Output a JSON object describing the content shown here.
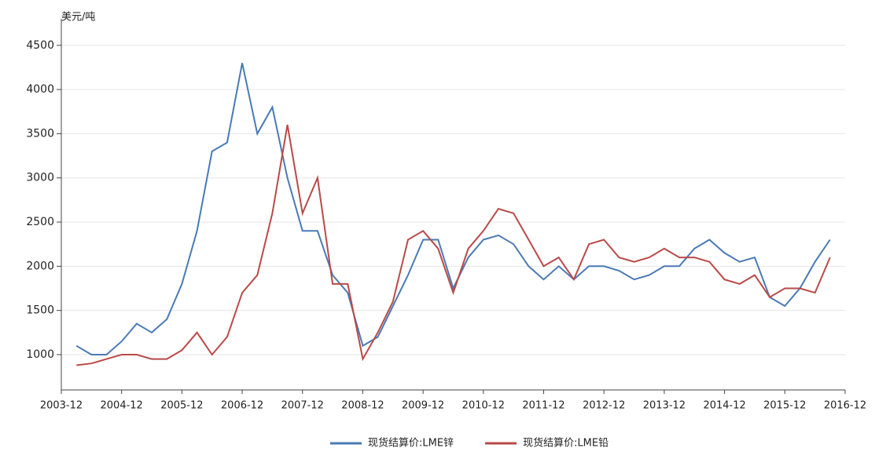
{
  "chart_data": {
    "type": "line",
    "y_label": "美元/吨",
    "x": [
      "2004-03",
      "2004-06",
      "2004-09",
      "2004-12",
      "2005-03",
      "2005-06",
      "2005-09",
      "2005-12",
      "2006-03",
      "2006-06",
      "2006-09",
      "2006-12",
      "2007-03",
      "2007-06",
      "2007-09",
      "2007-12",
      "2008-03",
      "2008-06",
      "2008-09",
      "2008-12",
      "2009-03",
      "2009-06",
      "2009-09",
      "2009-12",
      "2010-03",
      "2010-06",
      "2010-09",
      "2010-12",
      "2011-03",
      "2011-06",
      "2011-09",
      "2011-12",
      "2012-03",
      "2012-06",
      "2012-09",
      "2012-12",
      "2013-03",
      "2013-06",
      "2013-09",
      "2013-12",
      "2014-03",
      "2014-06",
      "2014-09",
      "2014-12",
      "2015-03",
      "2015-06",
      "2015-09",
      "2015-12",
      "2016-03",
      "2016-06",
      "2016-09"
    ],
    "series": [
      {
        "name": "现货结算价:LME锌",
        "color": "#4a7ab5",
        "values": [
          1100,
          1000,
          1000,
          1150,
          1350,
          1250,
          1400,
          1800,
          2400,
          3300,
          3400,
          4300,
          3500,
          3800,
          3000,
          2400,
          2400,
          1900,
          1700,
          1100,
          1200,
          1550,
          1900,
          2300,
          2300,
          1750,
          2100,
          2300,
          2350,
          2250,
          2000,
          1850,
          2000,
          1850,
          2000,
          2000,
          1950,
          1850,
          1900,
          2000,
          2000,
          2200,
          2300,
          2150,
          2050,
          2100,
          1650,
          1550,
          1750,
          2050,
          2300
        ]
      },
      {
        "name": "现货结算价:LME铅",
        "color": "#b94a48",
        "values": [
          880,
          900,
          950,
          1000,
          1000,
          950,
          950,
          1050,
          1250,
          1000,
          1200,
          1700,
          1900,
          2600,
          3600,
          2600,
          3000,
          1800,
          1800,
          950,
          1250,
          1600,
          2300,
          2400,
          2200,
          1700,
          2200,
          2400,
          2650,
          2600,
          2300,
          2000,
          2100,
          1850,
          2250,
          2300,
          2100,
          2050,
          2100,
          2200,
          2100,
          2100,
          2050,
          1850,
          1800,
          1900,
          1650,
          1750,
          1750,
          1700,
          2100
        ]
      }
    ],
    "xlim": [
      "2003-12",
      "2016-12"
    ],
    "xticks": [
      "2003-12",
      "2004-12",
      "2005-12",
      "2006-12",
      "2007-12",
      "2008-12",
      "2009-12",
      "2010-12",
      "2011-12",
      "2012-12",
      "2013-12",
      "2014-12",
      "2015-12",
      "2016-12"
    ],
    "ylim": [
      600,
      4800
    ],
    "yticks": [
      1000,
      1500,
      2000,
      2500,
      3000,
      3500,
      4000,
      4500
    ],
    "grid": true,
    "legend": "bottom"
  }
}
